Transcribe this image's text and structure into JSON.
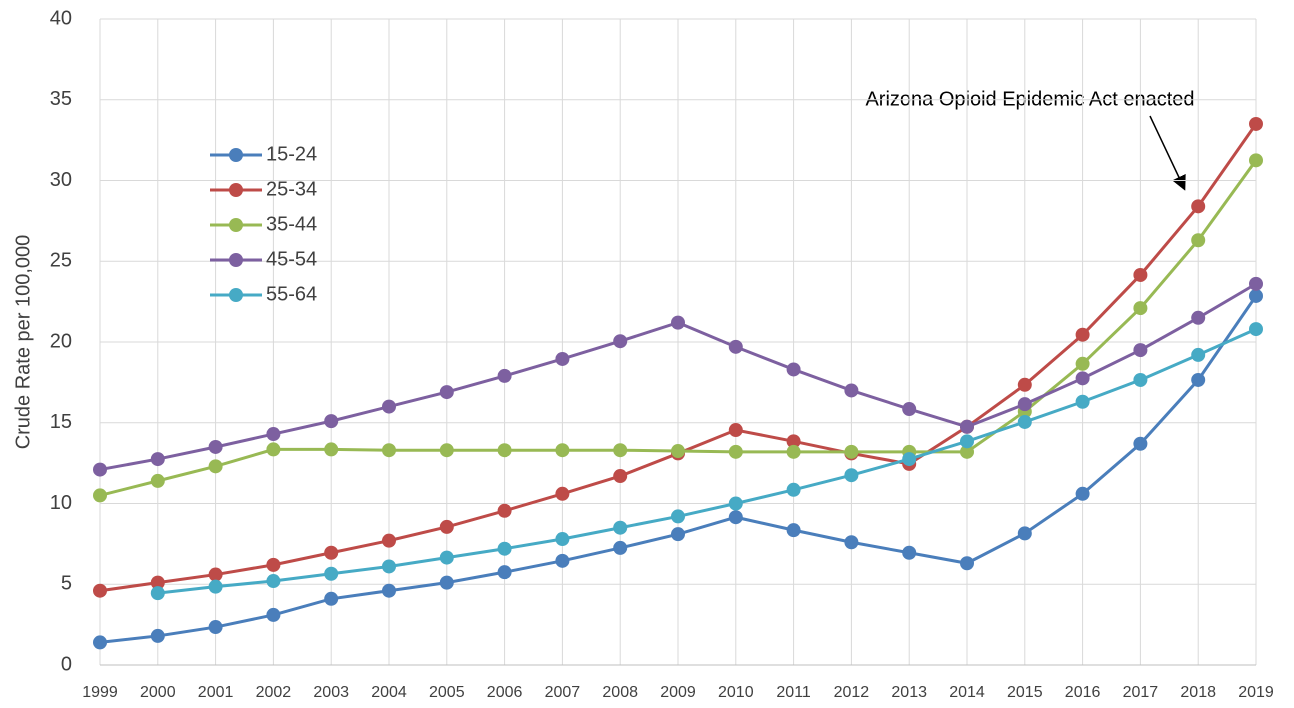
{
  "chart_data": {
    "type": "line",
    "y_label": "Crude  Rate per 100,000",
    "annotation": "Arizona Opioid Epidemic Act enacted",
    "categories": [
      "1999",
      "2000",
      "2001",
      "2002",
      "2003",
      "2004",
      "2005",
      "2006",
      "2007",
      "2008",
      "2009",
      "2010",
      "2011",
      "2012",
      "2013",
      "2014",
      "2015",
      "2016",
      "2017",
      "2018",
      "2019"
    ],
    "series": [
      {
        "name": "15-24",
        "color": "#4a7ebb",
        "values": [
          1.4,
          1.8,
          2.35,
          3.1,
          4.1,
          4.6,
          5.1,
          5.75,
          6.45,
          7.25,
          8.1,
          9.15,
          8.35,
          7.6,
          6.95,
          6.3,
          8.15,
          10.6,
          13.7,
          17.65,
          22.85
        ]
      },
      {
        "name": "25-34",
        "color": "#be4b48",
        "values": [
          4.6,
          5.1,
          5.6,
          6.2,
          6.95,
          7.7,
          8.55,
          9.55,
          10.6,
          11.7,
          13.1,
          14.55,
          13.85,
          13.1,
          12.45,
          14.75,
          17.35,
          20.45,
          24.15,
          28.4,
          33.5
        ]
      },
      {
        "name": "35-44",
        "color": "#98b954",
        "values": [
          10.5,
          11.4,
          12.3,
          13.35,
          13.35,
          13.3,
          13.3,
          13.3,
          13.3,
          13.3,
          13.25,
          13.2,
          13.2,
          13.2,
          13.2,
          13.2,
          15.7,
          18.65,
          22.1,
          26.3,
          31.25
        ]
      },
      {
        "name": "45-54",
        "color": "#7d60a0",
        "values": [
          12.1,
          12.75,
          13.5,
          14.3,
          15.1,
          16.0,
          16.9,
          17.9,
          18.95,
          20.05,
          21.2,
          19.7,
          18.3,
          17.0,
          15.85,
          14.75,
          16.15,
          17.75,
          19.5,
          21.5,
          23.6
        ]
      },
      {
        "name": "55-64",
        "color": "#46aac5",
        "values": [
          null,
          4.45,
          4.85,
          5.2,
          5.65,
          6.1,
          6.65,
          7.2,
          7.8,
          8.5,
          9.2,
          10.0,
          10.85,
          11.75,
          12.75,
          13.85,
          15.05,
          16.3,
          17.65,
          19.2,
          20.8
        ]
      }
    ],
    "ylim": [
      0,
      40
    ],
    "yticks": [
      0,
      5,
      10,
      15,
      20,
      25,
      30,
      35,
      40
    ],
    "grid": true
  }
}
